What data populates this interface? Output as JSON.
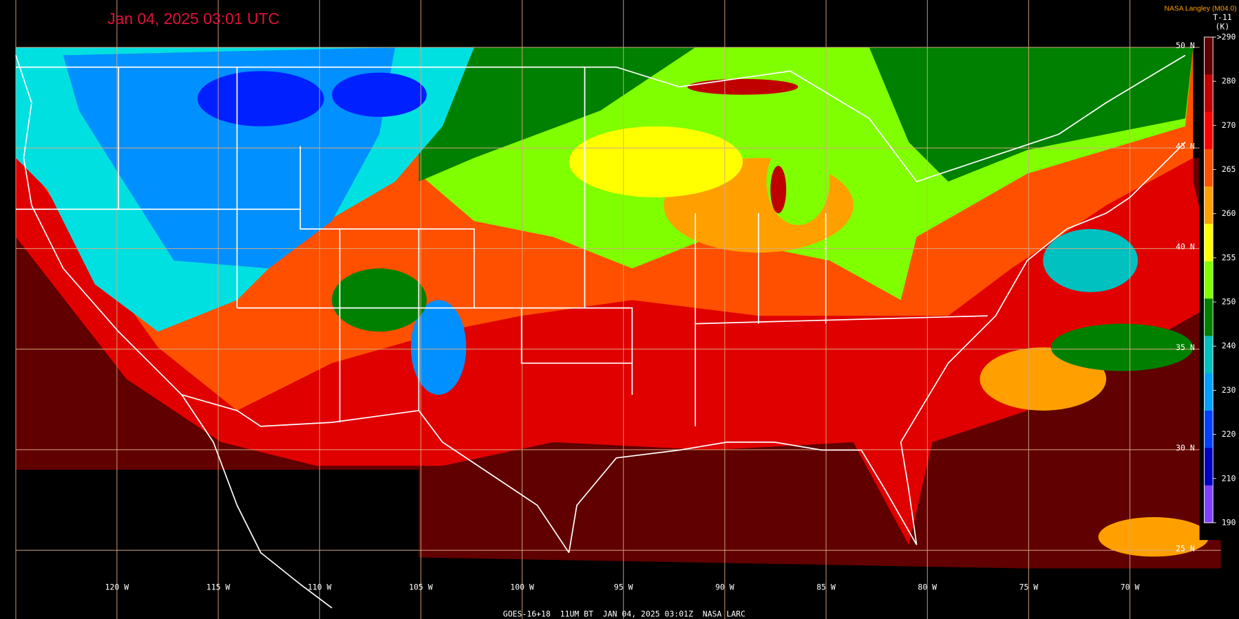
{
  "title": "Jan 04, 2025 03:01 UTC",
  "credit": "NASA Langley (M04.0)",
  "colorbar": {
    "label": "T-11",
    "unit": "(K)",
    "ticks": [
      ">290",
      "280",
      "270",
      "265",
      "260",
      "255",
      "250",
      "240",
      "230",
      "220",
      "210",
      "190"
    ],
    "colors": [
      "#600000",
      "#c00000",
      "#ff0000",
      "#ff5000",
      "#ffa000",
      "#ffff00",
      "#80ff00",
      "#008000",
      "#00c0c0",
      "#00a0ff",
      "#0040ff",
      "#0000c0",
      "#8040ff"
    ]
  },
  "latitude_labels": [
    "50 N",
    "45 N",
    "40 N",
    "35 N",
    "30 N",
    "25 N"
  ],
  "longitude_labels": [
    "120 W",
    "115 W",
    "110 W",
    "105 W",
    "100 W",
    "95 W",
    "90 W",
    "85 W",
    "80 W",
    "75 W",
    "70 W"
  ],
  "footer": "GOES-16+18  11UM BT  JAN 04, 2025 03:01Z  NASA LARC"
}
